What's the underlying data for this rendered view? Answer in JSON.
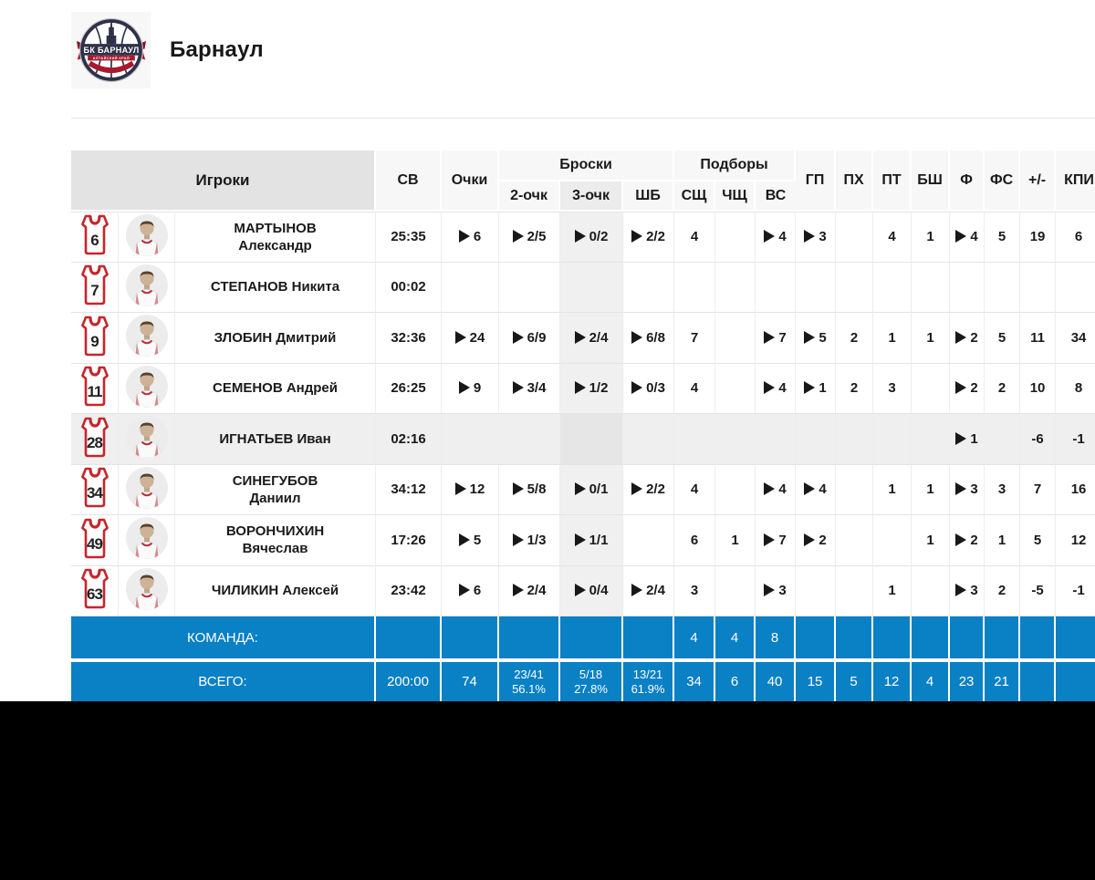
{
  "team": {
    "name": "Барнаул",
    "logo_alt": "БК БАРНАУЛ"
  },
  "colors": {
    "accent_blue": "#0a80c5",
    "jersey_red": "#c9252c",
    "header_gray": "#e3e3e3",
    "row_highlight": "#efefef",
    "column_shade": "#f0f0f0",
    "text": "#1a1a1a",
    "footer_text": "#ffffff"
  },
  "table": {
    "headers": {
      "players": "Игроки",
      "shots_group": "Броски",
      "rebounds_group": "Подборы"
    },
    "columns": [
      {
        "key": "sv",
        "label": "СВ"
      },
      {
        "key": "pts",
        "label": "Очки"
      },
      {
        "key": "p2",
        "label": "2-очк"
      },
      {
        "key": "p3",
        "label": "3-очк"
      },
      {
        "key": "ft",
        "label": "ШБ"
      },
      {
        "key": "or",
        "label": "СЩ"
      },
      {
        "key": "dr",
        "label": "ЧЩ"
      },
      {
        "key": "tr",
        "label": "ВС"
      },
      {
        "key": "as",
        "label": "ГП"
      },
      {
        "key": "st",
        "label": "ПХ"
      },
      {
        "key": "to",
        "label": "ПТ"
      },
      {
        "key": "bs",
        "label": "БШ"
      },
      {
        "key": "pf",
        "label": "Ф"
      },
      {
        "key": "fd",
        "label": "ФС"
      },
      {
        "key": "pm",
        "label": "+/-"
      },
      {
        "key": "eff",
        "label": "КПИ"
      }
    ],
    "players": [
      {
        "number": "6",
        "name_lines": [
          "МАРТЫНОВ",
          "Александр"
        ],
        "highlighted": false,
        "stats": [
          {
            "t": "25:35"
          },
          {
            "t": "6",
            "p": true
          },
          {
            "t": "2/5",
            "p": true
          },
          {
            "t": "0/2",
            "p": true
          },
          {
            "t": "2/2",
            "p": true
          },
          {
            "t": "4"
          },
          {
            "t": ""
          },
          {
            "t": "4",
            "p": true
          },
          {
            "t": "3",
            "p": true
          },
          {
            "t": ""
          },
          {
            "t": "4"
          },
          {
            "t": "1"
          },
          {
            "t": "4",
            "p": true
          },
          {
            "t": "5"
          },
          {
            "t": "19"
          },
          {
            "t": "6"
          }
        ]
      },
      {
        "number": "7",
        "name_lines": [
          "СТЕПАНОВ Никита"
        ],
        "highlighted": false,
        "stats": [
          {
            "t": "00:02"
          },
          {
            "t": ""
          },
          {
            "t": ""
          },
          {
            "t": ""
          },
          {
            "t": ""
          },
          {
            "t": ""
          },
          {
            "t": ""
          },
          {
            "t": ""
          },
          {
            "t": ""
          },
          {
            "t": ""
          },
          {
            "t": ""
          },
          {
            "t": ""
          },
          {
            "t": ""
          },
          {
            "t": ""
          },
          {
            "t": ""
          },
          {
            "t": ""
          }
        ]
      },
      {
        "number": "9",
        "name_lines": [
          "ЗЛОБИН Дмитрий"
        ],
        "highlighted": false,
        "stats": [
          {
            "t": "32:36"
          },
          {
            "t": "24",
            "p": true
          },
          {
            "t": "6/9",
            "p": true
          },
          {
            "t": "2/4",
            "p": true
          },
          {
            "t": "6/8",
            "p": true
          },
          {
            "t": "7"
          },
          {
            "t": ""
          },
          {
            "t": "7",
            "p": true
          },
          {
            "t": "5",
            "p": true
          },
          {
            "t": "2"
          },
          {
            "t": "1"
          },
          {
            "t": "1"
          },
          {
            "t": "2",
            "p": true
          },
          {
            "t": "5"
          },
          {
            "t": "11"
          },
          {
            "t": "34"
          }
        ]
      },
      {
        "number": "11",
        "name_lines": [
          "СЕМЕНОВ Андрей"
        ],
        "highlighted": false,
        "stats": [
          {
            "t": "26:25"
          },
          {
            "t": "9",
            "p": true
          },
          {
            "t": "3/4",
            "p": true
          },
          {
            "t": "1/2",
            "p": true
          },
          {
            "t": "0/3",
            "p": true
          },
          {
            "t": "4"
          },
          {
            "t": ""
          },
          {
            "t": "4",
            "p": true
          },
          {
            "t": "1",
            "p": true
          },
          {
            "t": "2"
          },
          {
            "t": "3"
          },
          {
            "t": ""
          },
          {
            "t": "2",
            "p": true
          },
          {
            "t": "2"
          },
          {
            "t": "10"
          },
          {
            "t": "8"
          }
        ]
      },
      {
        "number": "28",
        "name_lines": [
          "ИГНАТЬЕВ Иван"
        ],
        "highlighted": true,
        "stats": [
          {
            "t": "02:16"
          },
          {
            "t": ""
          },
          {
            "t": ""
          },
          {
            "t": ""
          },
          {
            "t": ""
          },
          {
            "t": ""
          },
          {
            "t": ""
          },
          {
            "t": ""
          },
          {
            "t": ""
          },
          {
            "t": ""
          },
          {
            "t": ""
          },
          {
            "t": ""
          },
          {
            "t": "1",
            "p": true
          },
          {
            "t": ""
          },
          {
            "t": "-6"
          },
          {
            "t": "-1"
          }
        ]
      },
      {
        "number": "34",
        "name_lines": [
          "СИНЕГУБОВ",
          "Даниил"
        ],
        "highlighted": false,
        "stats": [
          {
            "t": "34:12"
          },
          {
            "t": "12",
            "p": true
          },
          {
            "t": "5/8",
            "p": true
          },
          {
            "t": "0/1",
            "p": true
          },
          {
            "t": "2/2",
            "p": true
          },
          {
            "t": "4"
          },
          {
            "t": ""
          },
          {
            "t": "4",
            "p": true
          },
          {
            "t": "4",
            "p": true
          },
          {
            "t": ""
          },
          {
            "t": "1"
          },
          {
            "t": "1"
          },
          {
            "t": "3",
            "p": true
          },
          {
            "t": "3"
          },
          {
            "t": "7"
          },
          {
            "t": "16"
          }
        ]
      },
      {
        "number": "49",
        "name_lines": [
          "ВОРОНЧИХИН",
          "Вячеслав"
        ],
        "highlighted": false,
        "stats": [
          {
            "t": "17:26"
          },
          {
            "t": "5",
            "p": true
          },
          {
            "t": "1/3",
            "p": true
          },
          {
            "t": "1/1",
            "p": true
          },
          {
            "t": ""
          },
          {
            "t": "6"
          },
          {
            "t": "1"
          },
          {
            "t": "7",
            "p": true
          },
          {
            "t": "2",
            "p": true
          },
          {
            "t": ""
          },
          {
            "t": ""
          },
          {
            "t": "1"
          },
          {
            "t": "2",
            "p": true
          },
          {
            "t": "1"
          },
          {
            "t": "5"
          },
          {
            "t": "12"
          }
        ]
      },
      {
        "number": "63",
        "name_lines": [
          "ЧИЛИКИН Алексей"
        ],
        "highlighted": false,
        "stats": [
          {
            "t": "23:42"
          },
          {
            "t": "6",
            "p": true
          },
          {
            "t": "2/4",
            "p": true
          },
          {
            "t": "0/4",
            "p": true
          },
          {
            "t": "2/4",
            "p": true
          },
          {
            "t": "3"
          },
          {
            "t": ""
          },
          {
            "t": "3",
            "p": true
          },
          {
            "t": ""
          },
          {
            "t": ""
          },
          {
            "t": "1"
          },
          {
            "t": ""
          },
          {
            "t": "3",
            "p": true
          },
          {
            "t": "2"
          },
          {
            "t": "-5"
          },
          {
            "t": "-1"
          }
        ]
      }
    ],
    "team_row": {
      "label": "КОМАНДА:",
      "values": [
        "",
        "",
        "",
        "",
        "",
        "4",
        "4",
        "8",
        "",
        "",
        "",
        "",
        "",
        "",
        "",
        ""
      ]
    },
    "total_row": {
      "label": "ВСЕГО:",
      "values": [
        {
          "t": "200:00"
        },
        {
          "t": "74"
        },
        {
          "t": "23/41",
          "sub": "56.1%"
        },
        {
          "t": "5/18",
          "sub": "27.8%"
        },
        {
          "t": "13/21",
          "sub": "61.9%"
        },
        {
          "t": "34"
        },
        {
          "t": "6"
        },
        {
          "t": "40"
        },
        {
          "t": "15"
        },
        {
          "t": "5"
        },
        {
          "t": "12"
        },
        {
          "t": "4"
        },
        {
          "t": "23"
        },
        {
          "t": "21"
        },
        {
          "t": ""
        },
        {
          "t": ""
        }
      ]
    }
  }
}
